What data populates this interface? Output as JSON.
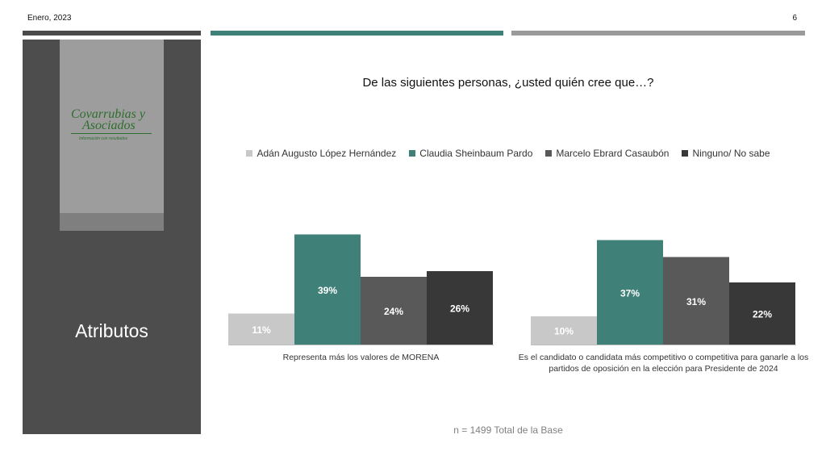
{
  "header": {
    "date": "Enero, 2023",
    "page": "6"
  },
  "sidebar": {
    "logo": {
      "line1": "Covarrubias y",
      "line2": "Asociados",
      "tagline": "Información con resultados"
    },
    "title": "Atributos"
  },
  "footer_note": "n = 1499 Total de la Base",
  "colors": {
    "adan": "#c8c8c8",
    "claudia": "#3f8078",
    "marcelo": "#595959",
    "ninguno": "#383838"
  },
  "chart_data": {
    "type": "bar",
    "title": "De las siguientes personas, ¿usted quién cree que…?",
    "unit": "%",
    "legend_position": "top",
    "grid": false,
    "ylim": [
      0,
      45
    ],
    "categories": [
      "Representa más los valores de MORENA",
      "Es el candidato o candidata más competitivo o competitiva para ganarle a los partidos de oposición en la elección para Presidente de 2024"
    ],
    "category_lines": [
      [
        "Representa más los valores de MORENA"
      ],
      [
        "Es el candidato o candidata más competitivo o competitiva para ganarle a los",
        "partidos de oposición en la elección para Presidente de 2024"
      ]
    ],
    "series": [
      {
        "name": "Adán Augusto López Hernández",
        "color": "#c8c8c8",
        "values": [
          11,
          10
        ]
      },
      {
        "name": "Claudia Sheinbaum Pardo",
        "color": "#3f8078",
        "values": [
          39,
          37
        ]
      },
      {
        "name": "Marcelo Ebrard Casaubón",
        "color": "#595959",
        "values": [
          24,
          31
        ]
      },
      {
        "name": "Ninguno/ No sabe",
        "color": "#383838",
        "values": [
          26,
          22
        ]
      }
    ]
  }
}
